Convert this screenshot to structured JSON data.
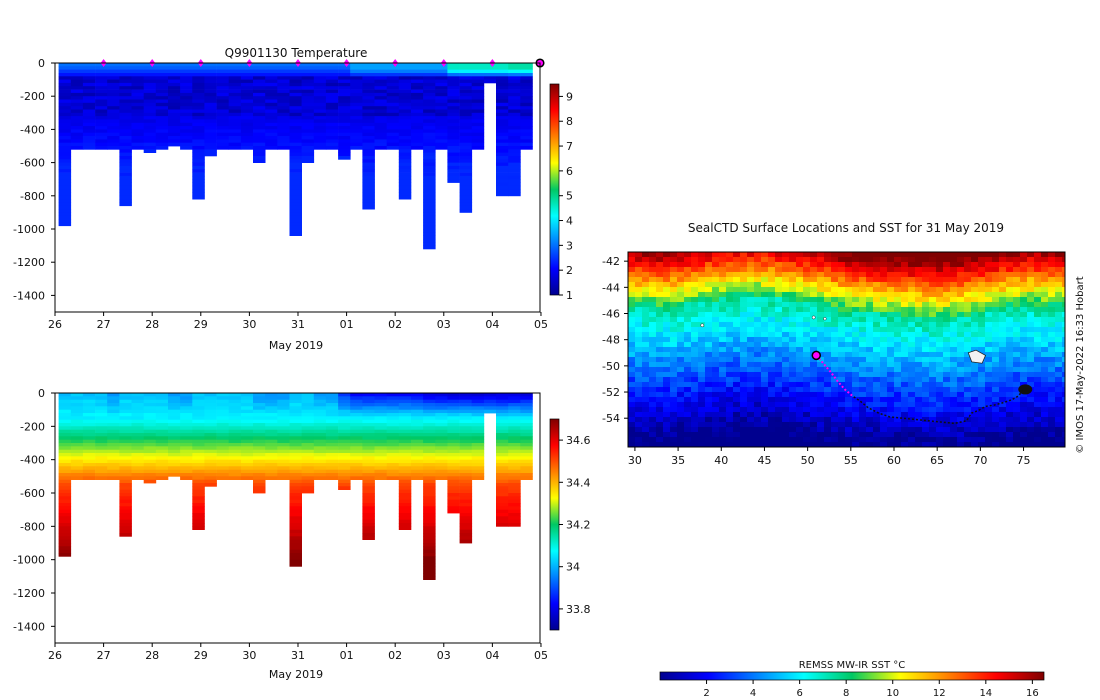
{
  "chart_data": [
    {
      "type": "heatmap",
      "title": "Q9901130  Temperature",
      "xlabel": "May 2019",
      "x_tick_labels": [
        "26",
        "27",
        "28",
        "29",
        "30",
        "31",
        "01",
        "02",
        "03",
        "04",
        "05"
      ],
      "xlim_days": [
        0,
        9.98
      ],
      "y_tick_labels": [
        "0",
        "-200",
        "-400",
        "-600",
        "-800",
        "-1000",
        "-1200",
        "-1400"
      ],
      "y_ticks": [
        0,
        -200,
        -400,
        -600,
        -800,
        -1000,
        -1200,
        -1400
      ],
      "ylim": [
        -1500,
        0
      ],
      "colorbar": {
        "min": 1,
        "max": 9.5,
        "tick_labels": [
          "1",
          "2",
          "3",
          "4",
          "5",
          "6",
          "7",
          "8",
          "9"
        ],
        "ticks": [
          1,
          2,
          3,
          4,
          5,
          6,
          7,
          8,
          9
        ],
        "colormap": "jet"
      },
      "marker_days": [
        1,
        2,
        3,
        4,
        5,
        6,
        7,
        8,
        9
      ],
      "marker_color": "#ff00ff",
      "last_profile_day": 9.98,
      "profile_days": [
        0.2,
        0.45,
        0.7,
        0.95,
        1.2,
        1.45,
        1.7,
        1.95,
        2.2,
        2.45,
        2.7,
        2.95,
        3.2,
        3.45,
        3.7,
        3.95,
        4.2,
        4.45,
        4.7,
        4.95,
        5.2,
        5.45,
        5.7,
        5.95,
        6.2,
        6.45,
        6.7,
        6.95,
        7.2,
        7.45,
        7.7,
        7.95,
        8.2,
        8.45,
        8.7,
        8.95,
        9.2,
        9.45,
        9.7
      ],
      "profile_max_depth": [
        980,
        520,
        520,
        520,
        520,
        850,
        520,
        530,
        520,
        500,
        520,
        820,
        560,
        520,
        520,
        520,
        590,
        520,
        520,
        1040,
        590,
        520,
        520,
        570,
        520,
        870,
        520,
        520,
        820,
        520,
        1120,
        520,
        720,
        900,
        520,
        120,
        790,
        790,
        520
      ],
      "surface_temp": [
        3,
        3,
        3,
        3,
        3,
        3,
        3,
        3,
        3,
        3,
        3,
        3,
        3,
        3,
        3,
        3,
        3,
        3,
        3,
        3,
        3,
        3,
        3,
        3,
        3.4,
        3.4,
        3.4,
        3.4,
        3.4,
        3.4,
        3.4,
        3.4,
        4.6,
        4.6,
        4.6,
        4.6,
        4.6,
        4.8,
        4.8
      ]
    },
    {
      "type": "heatmap",
      "title": "",
      "xlabel": "May 2019",
      "x_tick_labels": [
        "26",
        "27",
        "28",
        "29",
        "30",
        "31",
        "01",
        "02",
        "03",
        "04",
        "05"
      ],
      "y_tick_labels": [
        "0",
        "-200",
        "-400",
        "-600",
        "-800",
        "-1000",
        "-1200",
        "-1400"
      ],
      "y_ticks": [
        0,
        -200,
        -400,
        -600,
        -800,
        -1000,
        -1200,
        -1400
      ],
      "ylim": [
        -1500,
        0
      ],
      "colorbar": {
        "min": 33.7,
        "max": 34.7,
        "tick_labels": [
          "33.8",
          "34",
          "34.2",
          "34.4",
          "34.6"
        ],
        "ticks": [
          33.8,
          34.0,
          34.2,
          34.4,
          34.6
        ],
        "colormap": "jet"
      },
      "profile_max_depth": [
        980,
        520,
        520,
        520,
        520,
        850,
        520,
        530,
        520,
        500,
        520,
        820,
        560,
        520,
        520,
        520,
        590,
        520,
        520,
        1040,
        590,
        520,
        520,
        570,
        520,
        870,
        520,
        520,
        820,
        520,
        1120,
        520,
        720,
        900,
        520,
        120,
        790,
        790,
        520
      ],
      "surface_salinity": [
        34.0,
        34.0,
        34.0,
        34.0,
        33.95,
        34.0,
        34.0,
        34.0,
        34.0,
        33.95,
        33.95,
        34.0,
        34.0,
        34.0,
        34.0,
        34.0,
        33.95,
        33.95,
        33.95,
        34.0,
        34.0,
        33.95,
        33.95,
        33.85,
        33.8,
        33.8,
        33.8,
        33.8,
        33.8,
        33.8,
        33.75,
        33.75,
        33.75,
        33.75,
        33.75,
        33.75,
        33.75,
        33.75,
        33.75
      ]
    },
    {
      "type": "map",
      "title": "SealCTD Surface Locations and SST for 31 May 2019",
      "x_tick_labels": [
        "30",
        "35",
        "40",
        "45",
        "50",
        "55",
        "60",
        "65",
        "70",
        "75"
      ],
      "x_ticks": [
        30,
        35,
        40,
        45,
        50,
        55,
        60,
        65,
        70,
        75
      ],
      "xlim": [
        29.2,
        79.8
      ],
      "y_tick_labels": [
        "-42",
        "-44",
        "-46",
        "-48",
        "-50",
        "-52",
        "-54"
      ],
      "y_ticks": [
        -42,
        -44,
        -46,
        -48,
        -50,
        -52,
        -54
      ],
      "ylim": [
        -56.2,
        -41.3
      ],
      "track_lon": [
        51.0,
        51.8,
        52.7,
        53.5,
        54.3,
        55.2,
        56.1,
        57.0,
        58.2,
        59.5,
        61.0,
        62.5,
        64.0,
        65.5,
        67.0,
        68.4,
        69.0,
        69.8,
        70.6,
        71.6,
        72.7,
        73.6,
        74.4,
        75.0
      ],
      "track_lat": [
        -49.2,
        -49.8,
        -50.5,
        -51.2,
        -51.8,
        -52.3,
        -52.7,
        -53.2,
        -53.6,
        -53.9,
        -54.0,
        -54.1,
        -54.2,
        -54.3,
        -54.4,
        -54.2,
        -53.6,
        -53.4,
        -53.1,
        -53.0,
        -52.8,
        -52.6,
        -52.3,
        -51.8
      ],
      "recent_track_lon": [
        51.0,
        51.8,
        52.7,
        53.5,
        54.3,
        55.2
      ],
      "recent_track_lat": [
        -49.2,
        -49.8,
        -50.5,
        -51.2,
        -51.8,
        -52.3
      ],
      "current_position": {
        "lon": 51.0,
        "lat": -49.2
      },
      "sst_front_lat_by_lon": [
        -45.4,
        -45.6,
        -45.2,
        -44.8,
        -44.6,
        -44.9,
        -45.3,
        -45.8,
        -46.0,
        -46.2,
        -46.4,
        -46.1,
        -45.7,
        -45.3,
        -45.5
      ],
      "colorbar": {
        "label": "REMSS MW-IR SST °C",
        "min": 0,
        "max": 16.5,
        "tick_labels": [
          "2",
          "4",
          "6",
          "8",
          "10",
          "12",
          "14",
          "16"
        ],
        "ticks": [
          2,
          4,
          6,
          8,
          10,
          12,
          14,
          16
        ],
        "colormap": "jet"
      },
      "credit": "© IMOS 17-May-2022 16:33 Hobart"
    }
  ]
}
